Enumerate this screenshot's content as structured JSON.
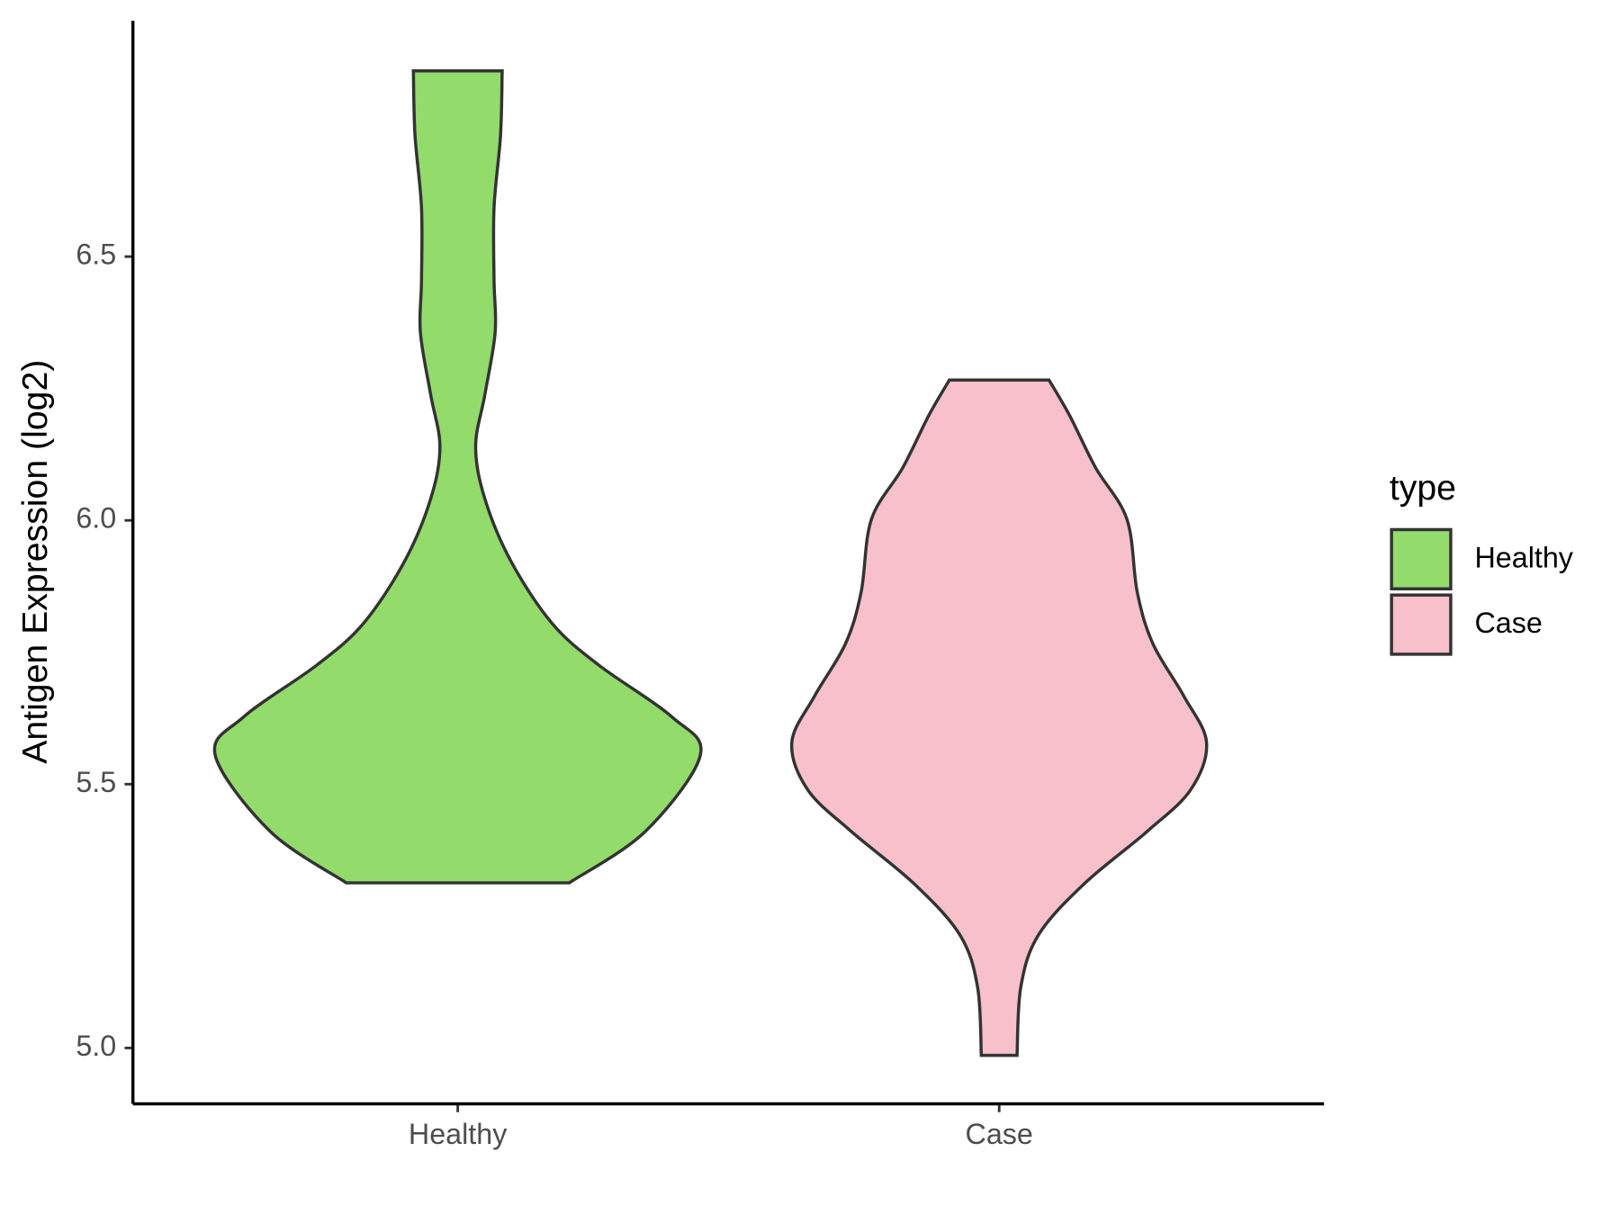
{
  "chart_data": {
    "type": "violin",
    "y_label": "Antigen Expression (log2)",
    "categories": [
      "Healthy",
      "Case"
    ],
    "legend_title": "type",
    "legend": "right",
    "ylim": [
      4.894,
      6.947
    ],
    "yticks": [
      {
        "value": 5,
        "label": "5.0"
      },
      5.5,
      {
        "value": 6,
        "label": "6.0"
      },
      6.5
    ],
    "series": [
      {
        "name": "Healthy",
        "color": "#93DB6B",
        "y": [
          5.313,
          5.411,
          5.555,
          5.628,
          5.726,
          5.805,
          5.923,
          6.041,
          6.14,
          6.238,
          6.356,
          6.455,
          6.593,
          6.73,
          6.852
        ],
        "width": [
          0.206,
          0.347,
          0.448,
          0.395,
          0.26,
          0.174,
          0.098,
          0.05,
          0.033,
          0.05,
          0.069,
          0.067,
          0.067,
          0.079,
          0.082
        ]
      },
      {
        "name": "Case",
        "color": "#F7C0CB",
        "y": [
          4.986,
          5.116,
          5.215,
          5.313,
          5.411,
          5.49,
          5.579,
          5.667,
          5.766,
          5.864,
          6.002,
          6.1,
          6.199,
          6.266
        ],
        "width": [
          0.033,
          0.04,
          0.073,
          0.159,
          0.274,
          0.354,
          0.383,
          0.341,
          0.284,
          0.255,
          0.236,
          0.178,
          0.13,
          0.092
        ]
      }
    ]
  }
}
